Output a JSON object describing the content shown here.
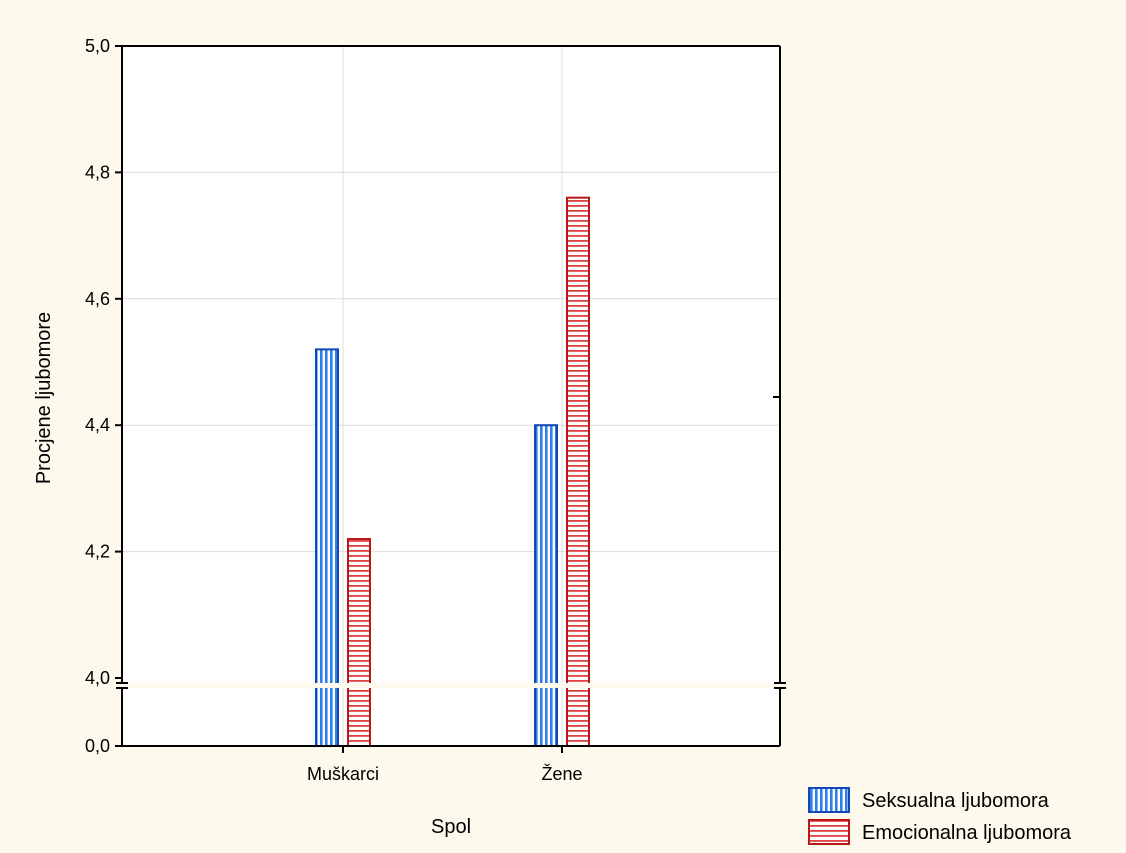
{
  "colors": {
    "background": "#FDF9EC",
    "plot_background": "#FFFFFF",
    "sexual_fill": "#2F7FE8",
    "sexual_stroke": "#1148B8",
    "emotional_fill": "#E04040",
    "emotional_stroke": "#B81818",
    "grid": "#DCDCDC"
  },
  "chart_data": {
    "type": "bar",
    "xlabel": "Spol",
    "ylabel": "Procjene ljubomore",
    "categories": [
      "Muškarci",
      "Žene"
    ],
    "series": [
      {
        "name": "Seksualna ljubomora",
        "values": [
          4.52,
          4.4
        ]
      },
      {
        "name": "Emocionalna ljubomora",
        "values": [
          4.22,
          4.76
        ]
      }
    ],
    "ylim": [
      4.0,
      5.0
    ],
    "axis_break": {
      "lower_value": 0.0,
      "lower_label": "0,0"
    },
    "yticks": [
      4.0,
      4.2,
      4.4,
      4.6,
      4.8,
      5.0
    ],
    "ytick_labels": [
      "4,0",
      "4,2",
      "4,4",
      "4,6",
      "4,8",
      "5,0"
    ],
    "grid": true,
    "legend_position": "bottom-right"
  }
}
